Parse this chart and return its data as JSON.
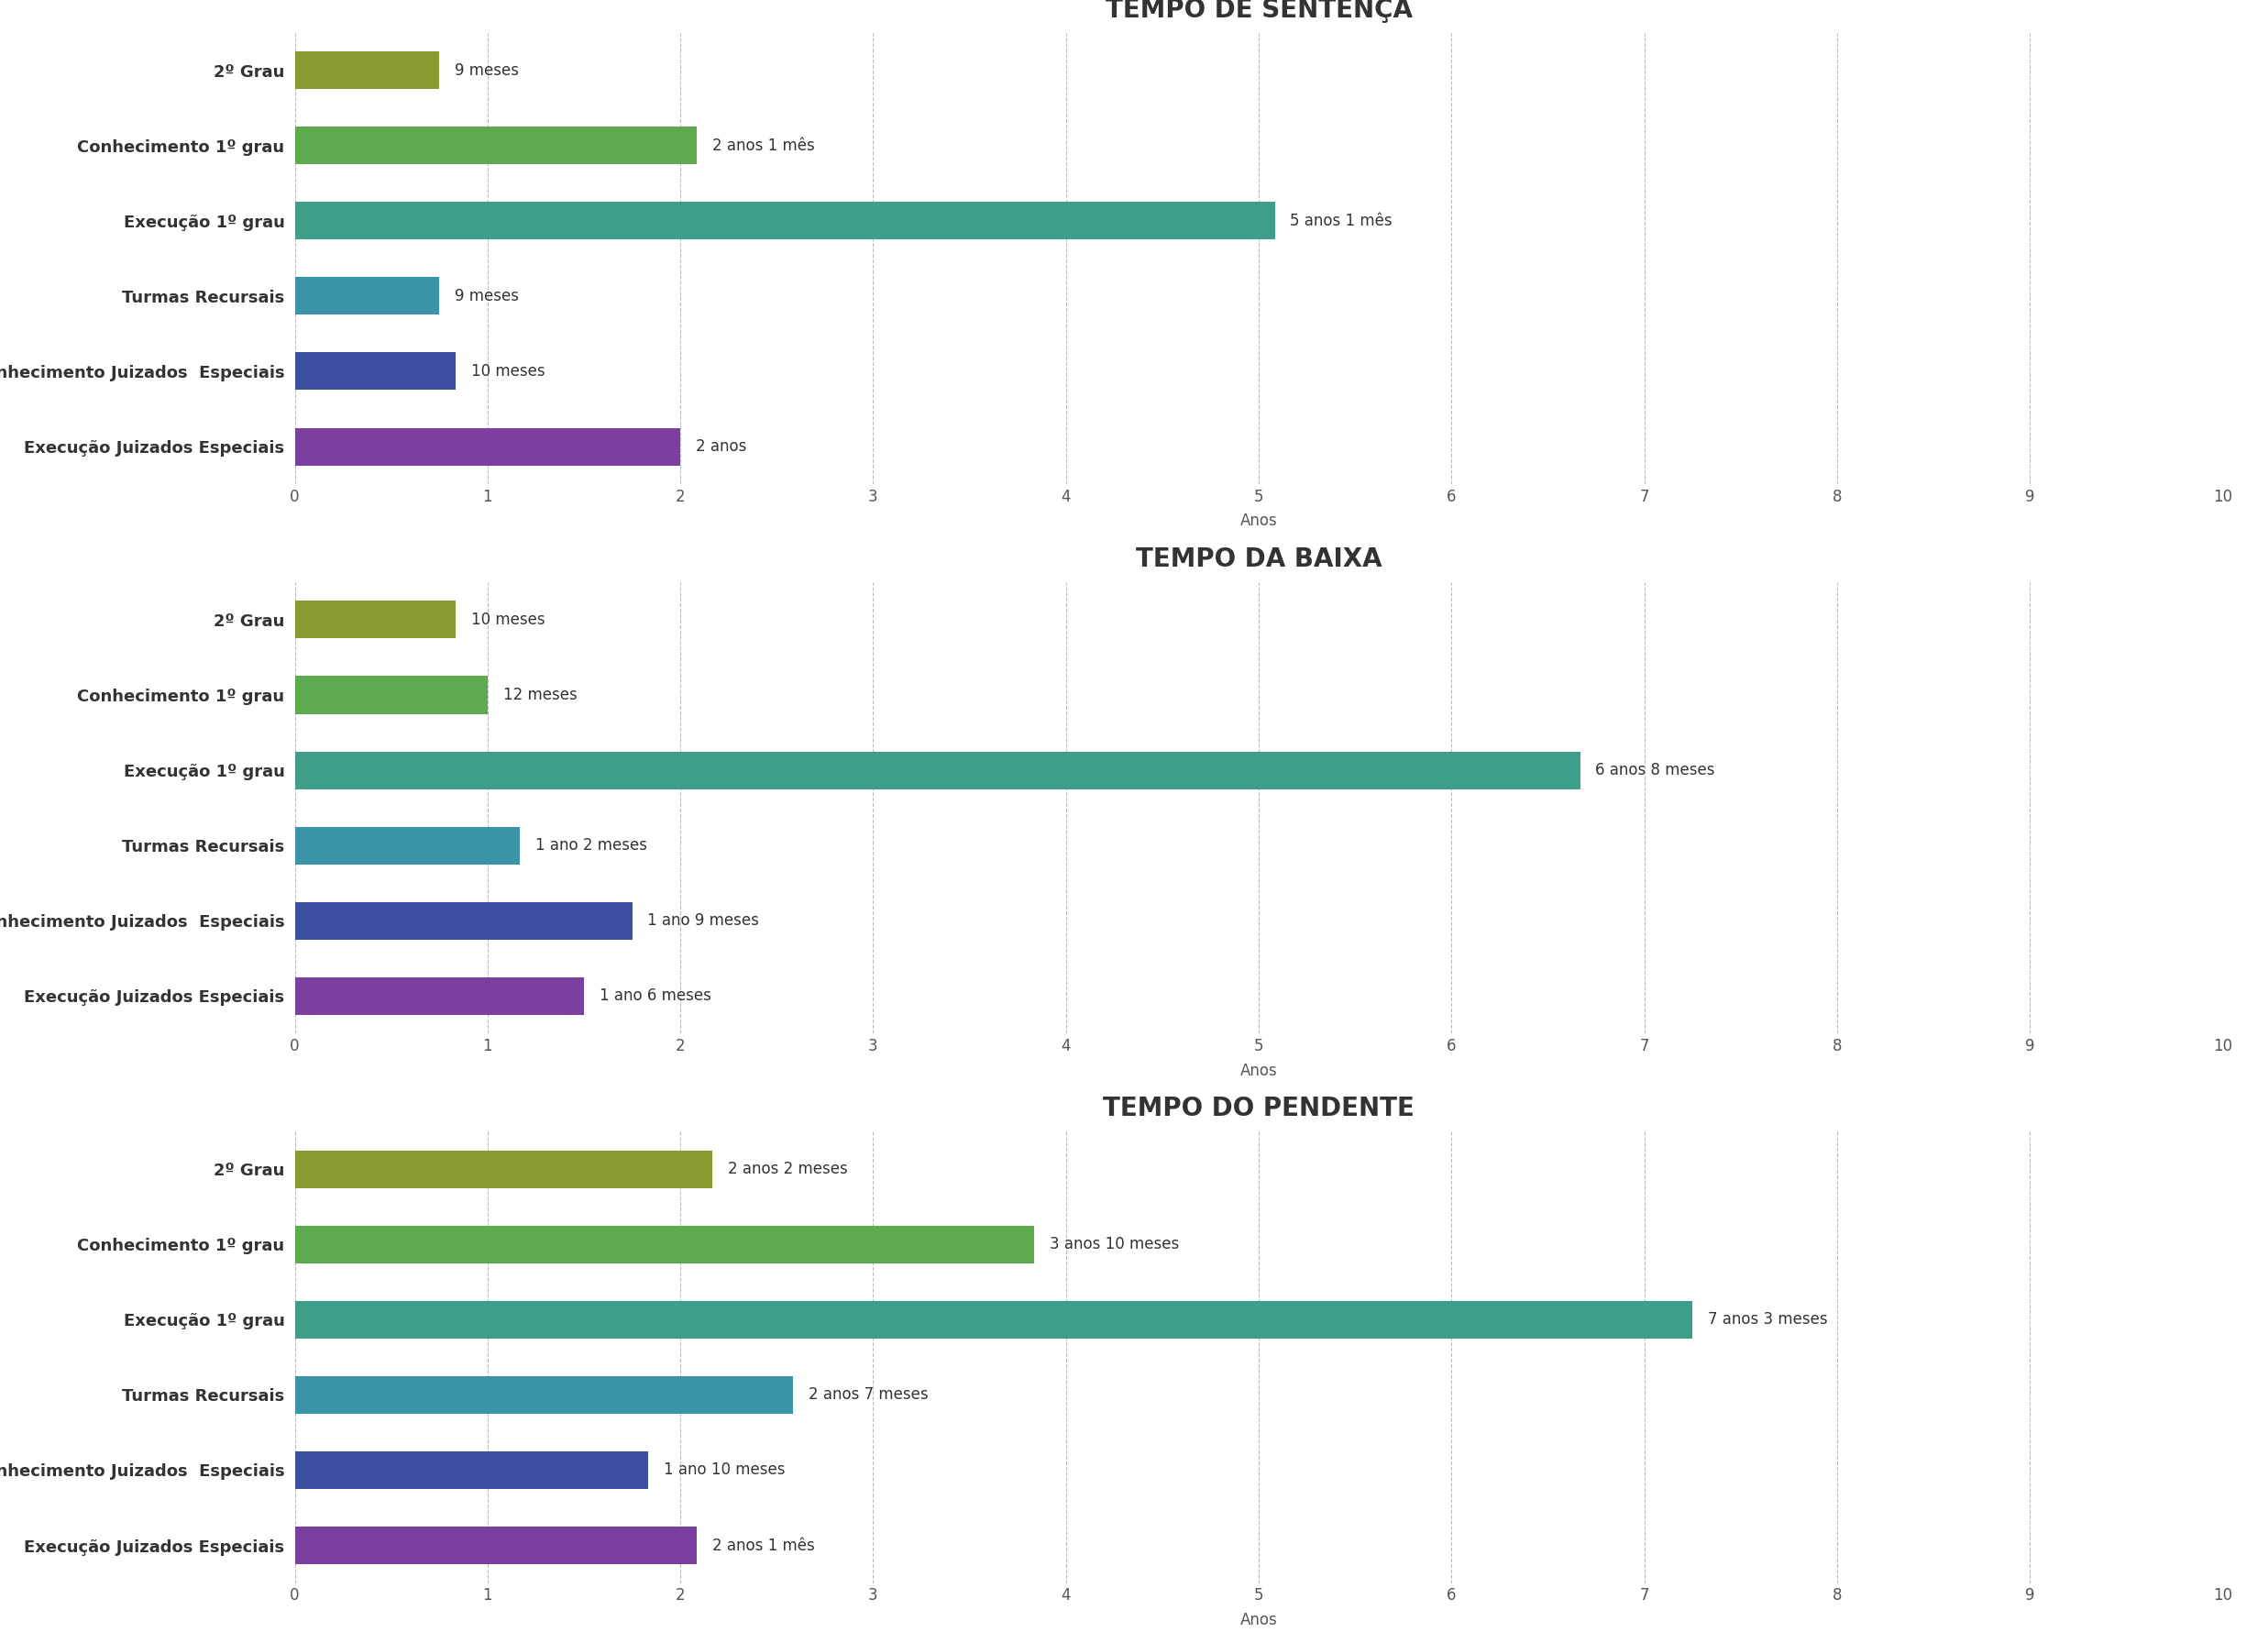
{
  "charts": [
    {
      "title": "TEMPO DE SENTENÇA",
      "categories": [
        "2º Grau",
        "Conhecimento 1º grau",
        "Execução 1º grau",
        "Turmas Recursais",
        "Conhecimento Juizados  Especiais",
        "Execução Juizados Especiais"
      ],
      "values": [
        0.75,
        2.0833,
        5.0833,
        0.75,
        0.8333,
        2.0
      ],
      "labels": [
        "9 meses",
        "2 anos 1 mês",
        "5 anos 1 mês",
        "9 meses",
        "10 meses",
        "2 anos"
      ],
      "colors": [
        "#8B9A2E",
        "#5DAA4F",
        "#3D9E8A",
        "#3A94A8",
        "#3D4FA0",
        "#7B3FA0"
      ]
    },
    {
      "title": "TEMPO DA BAIXA",
      "categories": [
        "2º Grau",
        "Conhecimento 1º grau",
        "Execução 1º grau",
        "Turmas Recursais",
        "Conhecimento Juizados  Especiais",
        "Execução Juizados Especiais"
      ],
      "values": [
        0.8333,
        1.0,
        6.6667,
        1.1667,
        1.75,
        1.5
      ],
      "labels": [
        "10 meses",
        "12 meses",
        "6 anos 8 meses",
        "1 ano 2 meses",
        "1 ano 9 meses",
        "1 ano 6 meses"
      ],
      "colors": [
        "#8B9A2E",
        "#5DAA4F",
        "#3D9E8A",
        "#3A94A8",
        "#3D4FA0",
        "#7B3FA0"
      ]
    },
    {
      "title": "TEMPO DO PENDENTE",
      "categories": [
        "2º Grau",
        "Conhecimento 1º grau",
        "Execução 1º grau",
        "Turmas Recursais",
        "Conhecimento Juizados  Especiais",
        "Execução Juizados Especiais"
      ],
      "values": [
        2.1667,
        3.8333,
        7.25,
        2.5833,
        1.8333,
        2.0833
      ],
      "labels": [
        "2 anos 2 meses",
        "3 anos 10 meses",
        "7 anos 3 meses",
        "2 anos 7 meses",
        "1 ano 10 meses",
        "2 anos 1 mês"
      ],
      "colors": [
        "#8B9A2E",
        "#5DAA4F",
        "#3D9E8A",
        "#3A94A8",
        "#3D4FA0",
        "#7B3FA0"
      ]
    }
  ],
  "xlabel": "Anos",
  "xlim": [
    0,
    10
  ],
  "xticks": [
    0,
    1,
    2,
    3,
    4,
    5,
    6,
    7,
    8,
    9,
    10
  ],
  "background_color": "#FFFFFF",
  "title_fontsize": 20,
  "category_fontsize": 13,
  "label_fontsize": 12,
  "tick_fontsize": 12,
  "xlabel_fontsize": 12,
  "bar_height": 0.5,
  "grid_color": "#BBBBBB",
  "text_color": "#333333",
  "tick_color": "#555555"
}
